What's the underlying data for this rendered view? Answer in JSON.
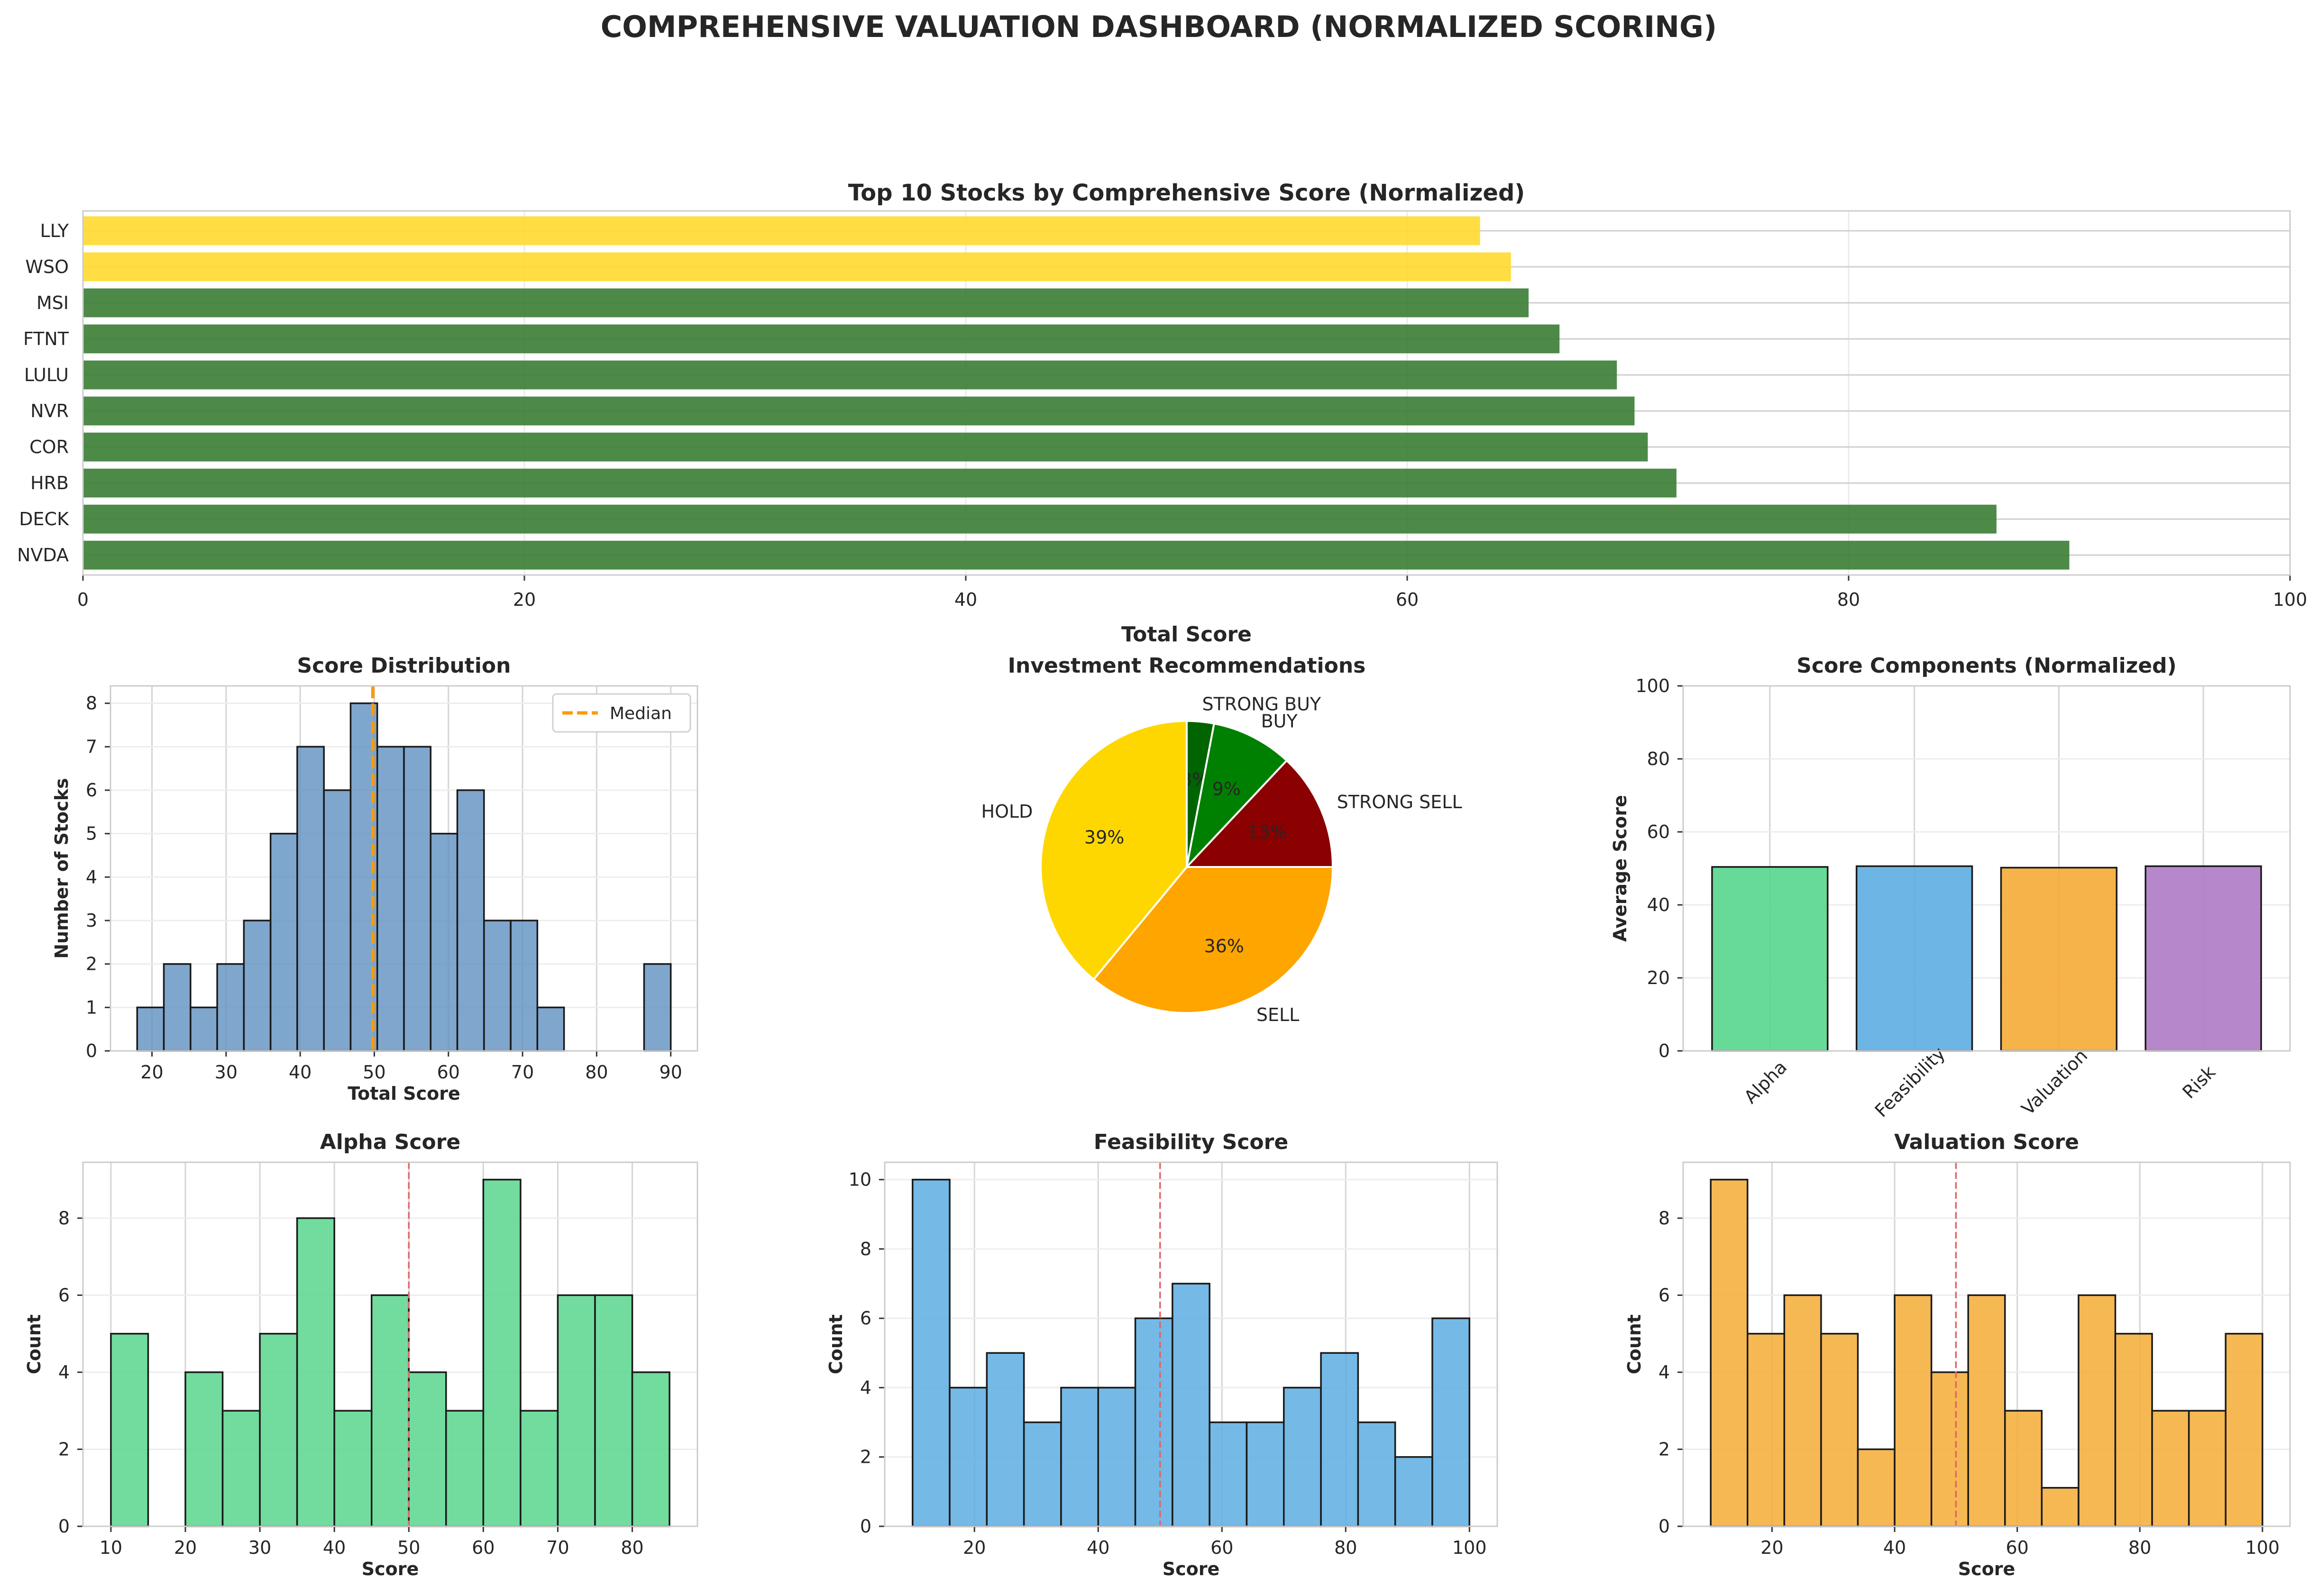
{
  "title": "COMPREHENSIVE VALUATION DASHBOARD (NORMALIZED SCORING)",
  "colors": {
    "buy_bar": "#3a7d34",
    "hold_bar": "#ffd92f",
    "hist_blue": "#5f90c0",
    "alpha": "#58d68d",
    "feasibility": "#5dade2",
    "valuation": "#f5ab35",
    "risk": "#af7ac5",
    "median_line": "#ff9900",
    "ref_line": "#e06666",
    "pie_strong_buy": "#006400",
    "pie_buy": "#008000",
    "pie_strong_sell": "#8b0000",
    "pie_sell": "#ffa500",
    "pie_hold": "#ffd700"
  },
  "chart_data": [
    {
      "id": "top10",
      "type": "bar",
      "orientation": "horizontal",
      "title": "Top 10 Stocks by Comprehensive Score (Normalized)",
      "xlabel": "Total Score",
      "ylabel": "",
      "xlim": [
        0,
        100
      ],
      "xticks": [
        0,
        20,
        40,
        60,
        80,
        100
      ],
      "categories": [
        "NVDA",
        "DECK",
        "HRB",
        "COR",
        "NVR",
        "LULU",
        "FTNT",
        "MSI",
        "WSO",
        "LLY"
      ],
      "values": [
        90.0,
        86.7,
        72.2,
        70.9,
        70.3,
        69.5,
        66.9,
        65.5,
        64.7,
        63.3
      ],
      "bar_colors": [
        "buy_bar",
        "buy_bar",
        "buy_bar",
        "buy_bar",
        "buy_bar",
        "buy_bar",
        "buy_bar",
        "buy_bar",
        "hold_bar",
        "hold_bar"
      ],
      "grid": true
    },
    {
      "id": "distribution",
      "type": "histogram",
      "title": "Score Distribution",
      "xlabel": "Total Score",
      "ylabel": "Number of Stocks",
      "bin_start": 18,
      "bin_width": 3.6,
      "counts": [
        1,
        2,
        1,
        2,
        3,
        5,
        7,
        6,
        8,
        7,
        7,
        5,
        6,
        3,
        3,
        1,
        0,
        0,
        0,
        2
      ],
      "xlim": [
        14.4,
        93.6
      ],
      "xticks": [
        20,
        30,
        40,
        50,
        60,
        70,
        80,
        90
      ],
      "ylim": [
        0,
        8.4
      ],
      "yticks": [
        0,
        1,
        2,
        3,
        4,
        5,
        6,
        7,
        8
      ],
      "median": 49.8,
      "legend": [
        "Median"
      ],
      "legend_position": "top-right",
      "grid": true
    },
    {
      "id": "recommendations",
      "type": "pie",
      "title": "Investment Recommendations",
      "slices": [
        {
          "label": "STRONG BUY",
          "value": 3,
          "pct_label": "3%",
          "color": "pie_strong_buy"
        },
        {
          "label": "BUY",
          "value": 9,
          "pct_label": "9%",
          "color": "pie_buy"
        },
        {
          "label": "STRONG SELL",
          "value": 13,
          "pct_label": "13%",
          "color": "pie_strong_sell"
        },
        {
          "label": "SELL",
          "value": 36,
          "pct_label": "36%",
          "color": "pie_sell"
        },
        {
          "label": "HOLD",
          "value": 39,
          "pct_label": "39%",
          "color": "pie_hold"
        }
      ]
    },
    {
      "id": "components",
      "type": "bar",
      "title": "Score Components (Normalized)",
      "xlabel": "",
      "ylabel": "Average Score",
      "categories": [
        "Alpha",
        "Feasibility",
        "Valuation",
        "Risk"
      ],
      "values": [
        50.4,
        50.6,
        50.2,
        50.6
      ],
      "bar_colors": [
        "alpha",
        "feasibility",
        "valuation",
        "risk"
      ],
      "ylim": [
        0,
        100
      ],
      "yticks": [
        0,
        20,
        40,
        60,
        80,
        100
      ],
      "grid": true
    },
    {
      "id": "alpha",
      "type": "histogram",
      "title": "Alpha Score",
      "xlabel": "Score",
      "ylabel": "Count",
      "bin_start": 10,
      "bin_width": 5,
      "counts": [
        5,
        0,
        4,
        3,
        5,
        8,
        3,
        6,
        4,
        3,
        9,
        3,
        6,
        6,
        4
      ],
      "xlim": [
        6.25,
        88.75
      ],
      "xticks": [
        10,
        20,
        30,
        40,
        50,
        60,
        70,
        80
      ],
      "ylim": [
        0,
        9.45
      ],
      "yticks": [
        0,
        2,
        4,
        6,
        8
      ],
      "ref_line": 50,
      "color": "alpha",
      "grid": true
    },
    {
      "id": "feasibility",
      "type": "histogram",
      "title": "Feasibility Score",
      "xlabel": "Score",
      "ylabel": "Count",
      "bin_start": 10,
      "bin_width": 6,
      "counts": [
        10,
        4,
        5,
        3,
        4,
        4,
        6,
        7,
        3,
        3,
        4,
        5,
        3,
        2,
        6
      ],
      "xlim": [
        5.5,
        104.5
      ],
      "xticks": [
        20,
        40,
        60,
        80,
        100
      ],
      "ylim": [
        0,
        10.5
      ],
      "yticks": [
        0,
        2,
        4,
        6,
        8,
        10
      ],
      "ref_line": 50,
      "color": "feasibility",
      "grid": true
    },
    {
      "id": "valuation",
      "type": "histogram",
      "title": "Valuation Score",
      "xlabel": "Score",
      "ylabel": "Count",
      "bin_start": 10,
      "bin_width": 6,
      "counts": [
        9,
        5,
        6,
        5,
        2,
        6,
        4,
        6,
        3,
        1,
        6,
        5,
        3,
        3,
        5
      ],
      "xlim": [
        5.5,
        104.5
      ],
      "xticks": [
        20,
        40,
        60,
        80,
        100
      ],
      "ylim": [
        0,
        9.45
      ],
      "yticks": [
        0,
        2,
        4,
        6,
        8
      ],
      "ref_line": 50,
      "color": "valuation",
      "grid": true
    }
  ]
}
